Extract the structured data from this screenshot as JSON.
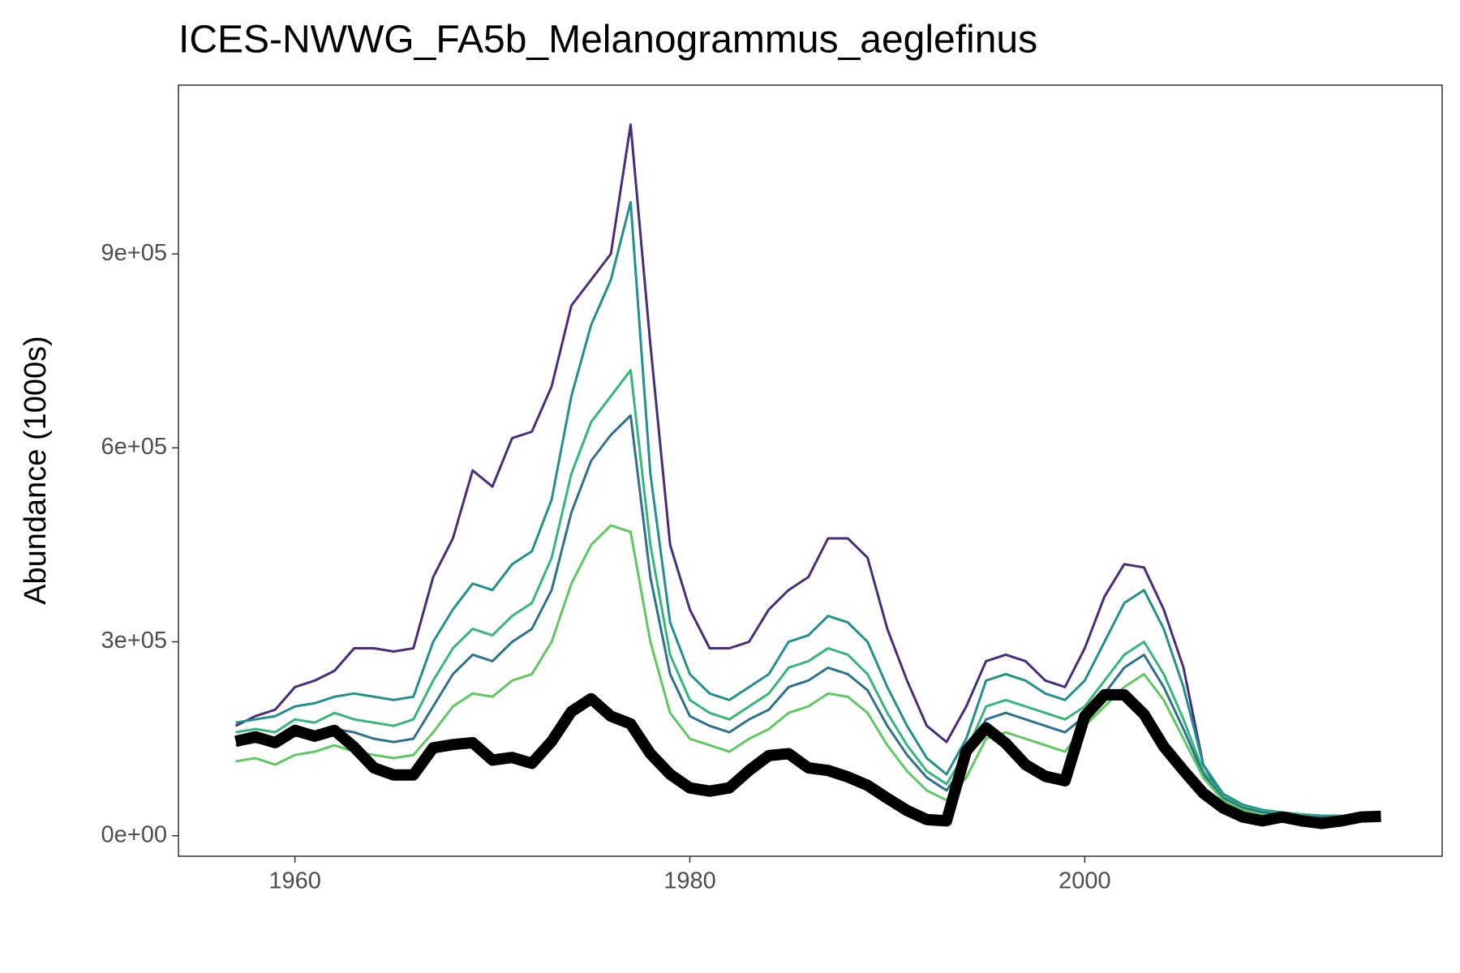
{
  "chart_data": {
    "type": "line",
    "title": "ICES-NWWG_FA5b_Melanogrammus_aeglefinus",
    "y_label": "Abundance (1000s)",
    "x": [
      1957,
      1958,
      1959,
      1960,
      1961,
      1962,
      1963,
      1964,
      1965,
      1966,
      1967,
      1968,
      1969,
      1970,
      1971,
      1972,
      1973,
      1974,
      1975,
      1976,
      1977,
      1978,
      1979,
      1980,
      1981,
      1982,
      1983,
      1984,
      1985,
      1986,
      1987,
      1988,
      1989,
      1990,
      1991,
      1992,
      1993,
      1994,
      1995,
      1996,
      1997,
      1998,
      1999,
      2000,
      2001,
      2002,
      2003,
      2004,
      2005,
      2006,
      2007,
      2008,
      2009,
      2010,
      2011,
      2012,
      2013,
      2014,
      2015
    ],
    "series": [
      {
        "color": "#472d7b",
        "width": 3,
        "values": [
          170000,
          185000,
          195000,
          230000,
          240000,
          255000,
          290000,
          290000,
          285000,
          290000,
          400000,
          460000,
          565000,
          540000,
          615000,
          625000,
          695000,
          820000,
          860000,
          900000,
          1100000,
          760000,
          450000,
          350000,
          290000,
          290000,
          300000,
          350000,
          380000,
          400000,
          460000,
          460000,
          430000,
          320000,
          240000,
          170000,
          145000,
          200000,
          270000,
          280000,
          270000,
          240000,
          230000,
          290000,
          370000,
          420000,
          415000,
          350000,
          260000,
          110000,
          60000,
          45000,
          38000,
          34000,
          32000,
          30000,
          30000,
          null,
          null
        ]
      },
      {
        "color": "#21918c",
        "width": 3,
        "values": [
          175000,
          180000,
          185000,
          200000,
          205000,
          215000,
          220000,
          215000,
          210000,
          215000,
          300000,
          350000,
          390000,
          380000,
          420000,
          440000,
          520000,
          680000,
          790000,
          860000,
          980000,
          560000,
          330000,
          250000,
          220000,
          210000,
          230000,
          250000,
          300000,
          310000,
          340000,
          330000,
          300000,
          230000,
          170000,
          120000,
          95000,
          150000,
          240000,
          250000,
          240000,
          220000,
          210000,
          240000,
          300000,
          360000,
          380000,
          320000,
          230000,
          110000,
          65000,
          48000,
          40000,
          36000,
          33000,
          31000,
          31000,
          null,
          null
        ]
      },
      {
        "color": "#35b779",
        "width": 3,
        "values": [
          160000,
          165000,
          160000,
          180000,
          175000,
          190000,
          180000,
          175000,
          170000,
          180000,
          240000,
          290000,
          320000,
          310000,
          340000,
          360000,
          430000,
          560000,
          640000,
          680000,
          720000,
          450000,
          280000,
          210000,
          190000,
          180000,
          200000,
          220000,
          260000,
          270000,
          290000,
          280000,
          250000,
          190000,
          140000,
          100000,
          80000,
          130000,
          200000,
          210000,
          200000,
          190000,
          180000,
          200000,
          240000,
          280000,
          300000,
          250000,
          180000,
          100000,
          60000,
          45000,
          38000,
          35000,
          32000,
          30000,
          30000,
          null,
          null
        ]
      },
      {
        "color": "#2c728e",
        "width": 3,
        "values": [
          140000,
          145000,
          140000,
          155000,
          150000,
          165000,
          160000,
          150000,
          145000,
          150000,
          200000,
          250000,
          280000,
          270000,
          300000,
          320000,
          380000,
          500000,
          580000,
          620000,
          650000,
          400000,
          250000,
          185000,
          170000,
          160000,
          180000,
          195000,
          230000,
          240000,
          260000,
          250000,
          225000,
          170000,
          125000,
          90000,
          70000,
          115000,
          180000,
          190000,
          180000,
          170000,
          160000,
          185000,
          220000,
          260000,
          280000,
          230000,
          165000,
          95000,
          58000,
          43000,
          36000,
          33000,
          30000,
          29000,
          29000,
          null,
          null
        ]
      },
      {
        "color": "#5ec962",
        "width": 3,
        "values": [
          115000,
          120000,
          110000,
          125000,
          130000,
          140000,
          130000,
          125000,
          120000,
          125000,
          160000,
          200000,
          220000,
          215000,
          240000,
          250000,
          300000,
          390000,
          450000,
          480000,
          470000,
          300000,
          190000,
          150000,
          140000,
          130000,
          150000,
          165000,
          190000,
          200000,
          220000,
          215000,
          190000,
          140000,
          100000,
          70000,
          55000,
          90000,
          150000,
          160000,
          150000,
          140000,
          130000,
          170000,
          200000,
          230000,
          250000,
          210000,
          150000,
          90000,
          55000,
          40000,
          33000,
          30000,
          28000,
          26000,
          26000,
          null,
          null
        ]
      },
      {
        "color": "#000000",
        "width": 14,
        "values": [
          146000,
          153000,
          144000,
          163000,
          154000,
          163000,
          137000,
          105000,
          94000,
          94000,
          136000,
          141000,
          144000,
          117000,
          121000,
          112000,
          146000,
          192000,
          212000,
          185000,
          173000,
          127000,
          95000,
          74000,
          69000,
          74000,
          101000,
          124000,
          127000,
          105000,
          101000,
          91000,
          78000,
          58000,
          39000,
          25000,
          23000,
          131000,
          167000,
          143000,
          110000,
          92000,
          85000,
          185000,
          218000,
          218000,
          188000,
          138000,
          101000,
          66000,
          43000,
          29000,
          23000,
          29000,
          23000,
          19000,
          23000,
          29000,
          30000
        ]
      }
    ],
    "xlim": [
      1954.1,
      2018.1
    ],
    "xticks": [
      1960,
      1980,
      2000
    ],
    "ylim": [
      -31700,
      1161000
    ],
    "yticks": [
      {
        "value": 0,
        "label": "0e+00"
      },
      {
        "value": 300000,
        "label": "3e+05"
      },
      {
        "value": 600000,
        "label": "6e+05"
      },
      {
        "value": 900000,
        "label": "9e+05"
      }
    ],
    "grid": false
  }
}
